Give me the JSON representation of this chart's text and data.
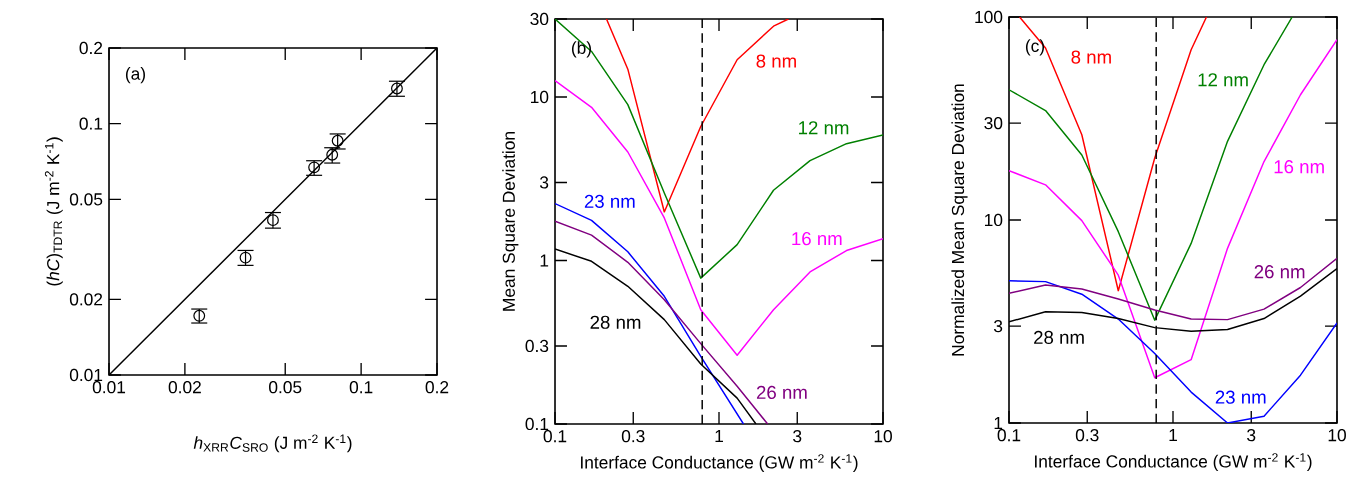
{
  "chart_data": [
    {
      "type": "scatter",
      "xlabel": "*h*$_{XRR}$*C*$_{SRO}$ (J m$^{-2}$ K$^{-1}$)",
      "ylabel": "(*hC*)$_{TDTR}$ (J m$^{-2}$ K$^{-1}$)",
      "annotations": [
        "(a)"
      ],
      "log": "xy",
      "xlim": [
        0.01,
        0.2
      ],
      "ylim": [
        0.01,
        0.2
      ],
      "xticks": [
        0.01,
        0.02,
        0.05,
        0.1,
        0.2
      ],
      "yticks": [
        0.01,
        0.02,
        0.05,
        0.1,
        0.2
      ],
      "series": [
        {
          "type": "scatter",
          "marker": "circle",
          "color": "#000000",
          "x": [
            0.0228,
            0.0348,
            0.0447,
            0.0651,
            0.0768,
            0.0807,
            0.1387
          ],
          "values": [
            0.0172,
            0.0293,
            0.0413,
            0.067,
            0.0752,
            0.0855,
            0.138
          ],
          "errors": [
            [
              0.0161,
              0.0183
            ],
            [
              0.0273,
              0.0313
            ],
            [
              0.0384,
              0.0443
            ],
            [
              0.0623,
              0.0712
            ],
            [
              0.0697,
              0.0802
            ],
            [
              0.0793,
              0.091
            ],
            [
              0.1285,
              0.1475
            ]
          ]
        },
        {
          "type": "line",
          "color": "#000000",
          "x": [
            0.01,
            0.2
          ],
          "values": [
            0.01,
            0.2
          ]
        }
      ]
    },
    {
      "type": "line",
      "xlabel": "Interface Conductance (GW m$^{-2}$ K$^{-1}$)",
      "ylabel": "Mean Square Deviation",
      "annotations": [
        "(b)"
      ],
      "log": "xy",
      "xlim": [
        0.1,
        10
      ],
      "ylim": [
        0.1,
        30
      ],
      "xticks": [
        0.1,
        0.3,
        1,
        3,
        10
      ],
      "yticks": [
        0.1,
        0.3,
        1,
        3,
        10,
        30
      ],
      "ref_lines": [
        {
          "axis": "x",
          "value": 0.79,
          "color": "#000000",
          "line_style": "dashed"
        }
      ],
      "series": [
        {
          "name": "8 nm",
          "color": "#ff0000",
          "x": [
            0.206,
            0.278,
            0.464,
            0.774,
            1.29,
            2.15,
            2.65
          ],
          "values": [
            30,
            14.8,
            1.98,
            6.6,
            16.9,
            27.1,
            30
          ]
        },
        {
          "name": "12 nm",
          "color": "#008000",
          "x": [
            0.1,
            0.167,
            0.278,
            0.464,
            0.774,
            1.29,
            2.15,
            3.59,
            5.99,
            10
          ],
          "values": [
            30,
            19.0,
            8.98,
            2.59,
            0.78,
            1.25,
            2.69,
            4.08,
            5.18,
            5.86
          ]
        },
        {
          "name": "16 nm",
          "color": "#ff00ff",
          "x": [
            0.1,
            0.167,
            0.278,
            0.464,
            0.774,
            1.29,
            2.15,
            3.59,
            5.99,
            10
          ],
          "values": [
            12.6,
            8.65,
            4.61,
            1.82,
            0.5,
            0.263,
            0.5,
            0.851,
            1.15,
            1.36
          ]
        },
        {
          "name": "23 nm",
          "color": "#0000ff",
          "x": [
            0.1,
            0.167,
            0.278,
            0.464,
            0.774,
            1.41
          ],
          "values": [
            2.23,
            1.76,
            1.13,
            0.604,
            0.259,
            0.1
          ]
        },
        {
          "name": "26 nm",
          "color": "#800080",
          "x": [
            0.1,
            0.167,
            0.278,
            0.464,
            0.774,
            1.29,
            1.98
          ],
          "values": [
            1.74,
            1.43,
            0.975,
            0.576,
            0.31,
            0.17,
            0.1
          ]
        },
        {
          "name": "28 nm",
          "color": "#000000",
          "x": [
            0.1,
            0.167,
            0.278,
            0.464,
            0.774,
            1.29,
            1.68
          ],
          "values": [
            1.175,
            0.989,
            0.695,
            0.435,
            0.233,
            0.144,
            0.1
          ]
        }
      ]
    },
    {
      "type": "line",
      "xlabel": "Interface Conductance (GW m$^{-2}$ K$^{-1}$)",
      "ylabel": "Normalized Mean Square Deviation",
      "annotations": [
        "(c)"
      ],
      "log": "xy",
      "xlim": [
        0.1,
        10
      ],
      "ylim": [
        1,
        100
      ],
      "xticks": [
        0.1,
        0.3,
        1,
        3,
        10
      ],
      "yticks": [
        1,
        3,
        10,
        30,
        100
      ],
      "ref_lines": [
        {
          "axis": "x",
          "value": 0.79,
          "color": "#000000",
          "line_style": "dashed"
        }
      ],
      "series": [
        {
          "name": "8 nm",
          "color": "#ff0000",
          "x": [
            0.116,
            0.167,
            0.278,
            0.464,
            0.774,
            1.29,
            1.6
          ],
          "values": [
            100,
            70.3,
            26.3,
            4.48,
            20.2,
            69,
            100
          ]
        },
        {
          "name": "12 nm",
          "color": "#008000",
          "x": [
            0.1,
            0.167,
            0.278,
            0.464,
            0.774,
            1.29,
            2.15,
            3.59,
            5.33
          ],
          "values": [
            43.8,
            34.6,
            20.9,
            8.76,
            3.21,
            7.67,
            24.4,
            58.2,
            100
          ]
        },
        {
          "name": "16 nm",
          "color": "#ff00ff",
          "x": [
            0.1,
            0.167,
            0.278,
            0.464,
            0.774,
            1.29,
            2.15,
            3.59,
            5.99,
            10
          ],
          "values": [
            17.5,
            14.9,
            9.93,
            5.35,
            1.67,
            2.05,
            7.25,
            19.4,
            41.4,
            77.3
          ]
        },
        {
          "name": "23 nm",
          "color": "#0000ff",
          "x": [
            0.1,
            0.167,
            0.278,
            0.464,
            0.774,
            1.29,
            2.15,
            3.59,
            5.99,
            10
          ],
          "values": [
            5.02,
            4.97,
            4.31,
            3.25,
            2.2,
            1.42,
            1.0,
            1.08,
            1.72,
            3.11
          ]
        },
        {
          "name": "26 nm",
          "color": "#800080",
          "x": [
            0.1,
            0.167,
            0.278,
            0.464,
            0.774,
            1.29,
            2.15,
            3.59,
            5.99,
            10
          ],
          "values": [
            4.35,
            4.78,
            4.57,
            4.08,
            3.6,
            3.25,
            3.23,
            3.64,
            4.65,
            6.47
          ]
        },
        {
          "name": "28 nm",
          "color": "#000000",
          "x": [
            0.1,
            0.167,
            0.278,
            0.464,
            0.774,
            1.29,
            2.15,
            3.59,
            5.99,
            10
          ],
          "values": [
            3.15,
            3.53,
            3.5,
            3.27,
            2.95,
            2.83,
            2.89,
            3.27,
            4.22,
            5.77
          ]
        }
      ]
    }
  ]
}
